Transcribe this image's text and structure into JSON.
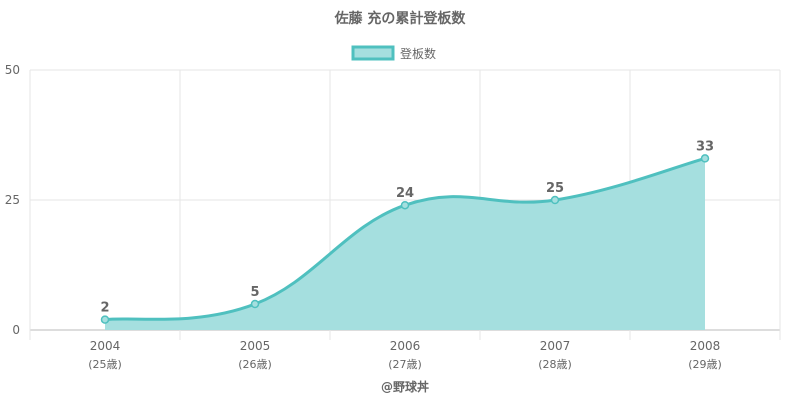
{
  "chart_data": {
    "type": "area",
    "title": "佐藤 充の累計登板数",
    "legend": {
      "label": "登板数",
      "position": "top"
    },
    "categories": [
      "2004",
      "2005",
      "2006",
      "2007",
      "2008"
    ],
    "sub_categories": [
      "(25歳)",
      "(26歳)",
      "(27歳)",
      "(28歳)",
      "(29歳)"
    ],
    "series": [
      {
        "name": "登板数",
        "values": [
          2,
          5,
          24,
          25,
          33
        ]
      }
    ],
    "ylim": [
      0,
      50
    ],
    "yticks": [
      "0",
      "25",
      "50"
    ],
    "grid": true,
    "source": "@野球丼",
    "colors": {
      "line": "#4fc0bf",
      "fill": "#a5dfdf",
      "grid": "#e5e5e5",
      "axis": "#bbbbbb"
    }
  }
}
